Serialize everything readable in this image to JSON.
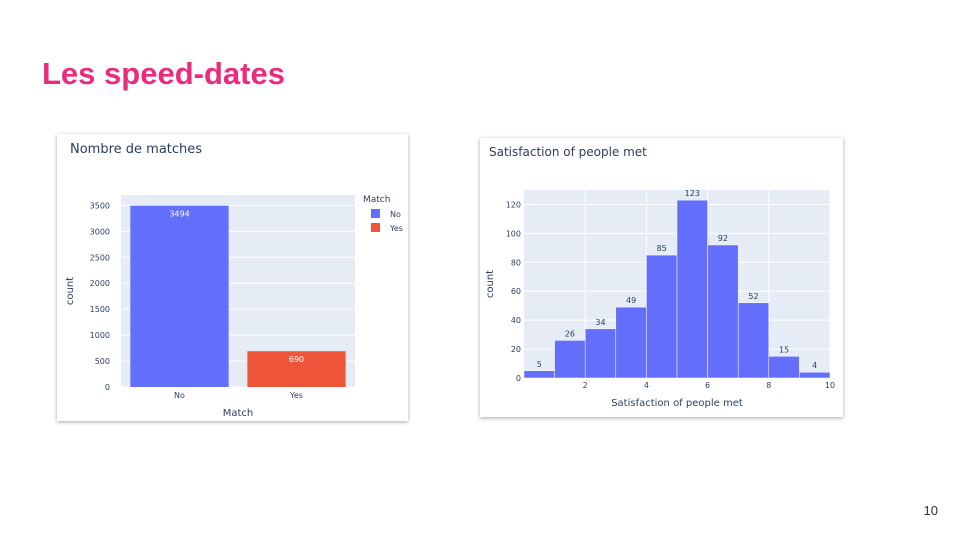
{
  "slide": {
    "title": "Les speed-dates",
    "page_number": "10"
  },
  "colors": {
    "title": "#ee2a7b",
    "series_no": "#636efa",
    "series_yes": "#ef553b",
    "plot_bg": "#e5ecf6"
  },
  "chart_data": [
    {
      "type": "bar",
      "title": "Nombre de matches",
      "xlabel": "Match",
      "ylabel": "count",
      "categories": [
        "No",
        "Yes"
      ],
      "values": [
        3494,
        690
      ],
      "value_labels": [
        "3494",
        "690"
      ],
      "ylim": [
        0,
        3700
      ],
      "yticks": [
        0,
        500,
        1000,
        1500,
        2000,
        2500,
        3000,
        3500
      ],
      "legend": {
        "title": "Match",
        "position": "top-right",
        "items": [
          {
            "label": "No",
            "color": "#636efa"
          },
          {
            "label": "Yes",
            "color": "#ef553b"
          }
        ]
      },
      "grid": true
    },
    {
      "type": "bar",
      "subtype": "histogram",
      "title": "Satisfaction of people met",
      "xlabel": "Satisfaction of people met",
      "ylabel": "count",
      "bins": [
        {
          "x0": 0,
          "x1": 1,
          "count": 5
        },
        {
          "x0": 1,
          "x1": 2,
          "count": 26
        },
        {
          "x0": 2,
          "x1": 3,
          "count": 34
        },
        {
          "x0": 3,
          "x1": 4,
          "count": 49
        },
        {
          "x0": 4,
          "x1": 5,
          "count": 85
        },
        {
          "x0": 5,
          "x1": 6,
          "count": 123
        },
        {
          "x0": 6,
          "x1": 7,
          "count": 92
        },
        {
          "x0": 7,
          "x1": 8,
          "count": 52
        },
        {
          "x0": 8,
          "x1": 9,
          "count": 15
        },
        {
          "x0": 9,
          "x1": 10,
          "count": 4
        }
      ],
      "xlim": [
        0,
        10
      ],
      "ylim": [
        0,
        130
      ],
      "xticks": [
        2,
        4,
        6,
        8,
        10
      ],
      "yticks": [
        0,
        20,
        40,
        60,
        80,
        100,
        120
      ],
      "grid": true
    }
  ]
}
